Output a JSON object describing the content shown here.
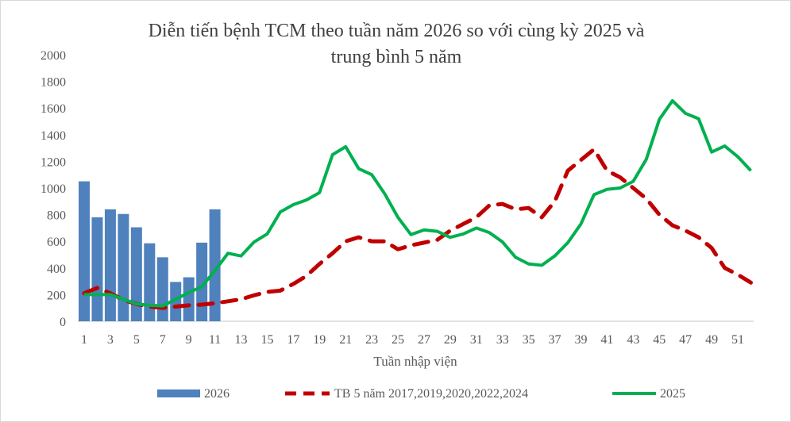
{
  "chart_data": {
    "type": "bar+line",
    "title_lines": [
      "Diễn tiến bệnh TCM theo tuần năm 2026 so với cùng kỳ 2025 và",
      "trung bình 5 năm"
    ],
    "xlabel": "Tuần nhập viện",
    "ylabel": "",
    "ylim": [
      0,
      2000
    ],
    "yticks": [
      0,
      200,
      400,
      600,
      800,
      1000,
      1200,
      1400,
      1600,
      1800,
      2000
    ],
    "xticks": [
      1,
      3,
      5,
      7,
      9,
      11,
      13,
      15,
      17,
      19,
      21,
      23,
      25,
      27,
      29,
      31,
      33,
      35,
      37,
      39,
      41,
      43,
      45,
      47,
      49,
      51
    ],
    "grid": false,
    "legend_position": "bottom",
    "series": [
      {
        "name": "2026",
        "kind": "bar",
        "color": "#4f81bd",
        "values": [
          1050,
          780,
          840,
          805,
          705,
          585,
          480,
          295,
          330,
          590,
          840
        ]
      },
      {
        "name": "TB 5 năm 2017,2019,2020,2022,2024",
        "kind": "dashed-line",
        "color": "#c00000",
        "values": [
          210,
          250,
          210,
          160,
          130,
          110,
          100,
          110,
          120,
          125,
          135,
          150,
          165,
          195,
          220,
          230,
          280,
          340,
          430,
          510,
          600,
          630,
          600,
          600,
          540,
          570,
          590,
          610,
          680,
          730,
          780,
          870,
          880,
          840,
          850,
          780,
          900,
          1130,
          1210,
          1290,
          1130,
          1080,
          1000,
          920,
          800,
          720,
          680,
          630,
          550,
          400,
          350,
          290
        ]
      },
      {
        "name": "2025",
        "kind": "line",
        "color": "#00b050",
        "values": [
          200,
          200,
          200,
          165,
          130,
          120,
          115,
          165,
          215,
          260,
          380,
          510,
          490,
          595,
          655,
          820,
          875,
          910,
          965,
          1250,
          1310,
          1145,
          1100,
          955,
          780,
          650,
          685,
          675,
          630,
          655,
          700,
          665,
          595,
          480,
          430,
          420,
          490,
          590,
          730,
          950,
          990,
          1000,
          1050,
          1215,
          1515,
          1655,
          1560,
          1520,
          1270,
          1315,
          1235,
          1130
        ]
      }
    ]
  }
}
